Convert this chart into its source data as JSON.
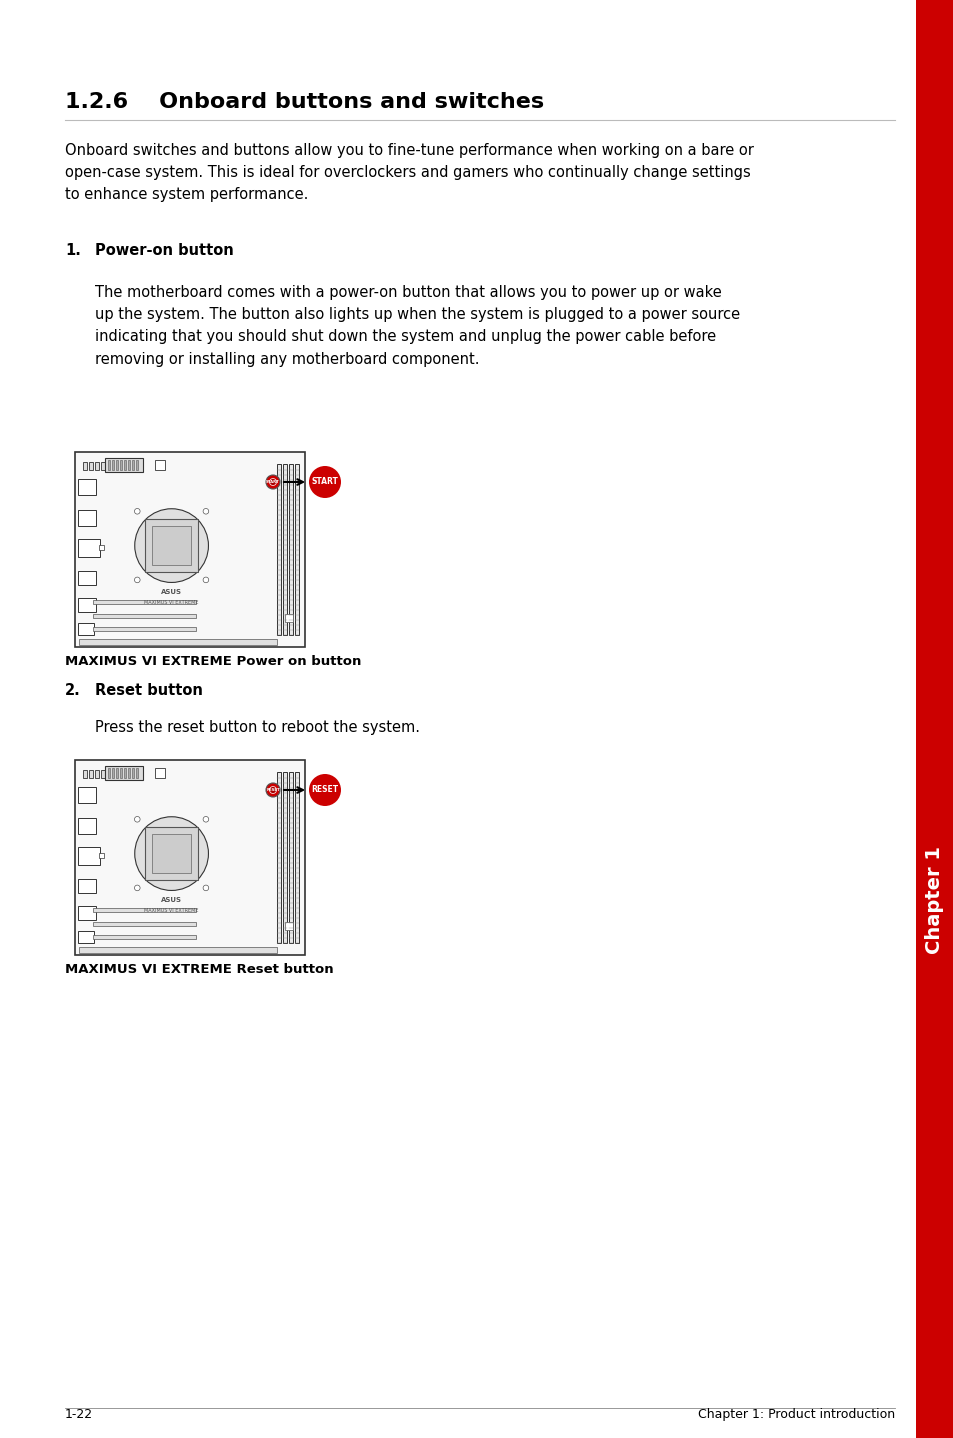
{
  "title": "1.2.6    Onboard buttons and switches",
  "title_fontsize": 16,
  "body_fontsize": 10.5,
  "intro_text": "Onboard switches and buttons allow you to fine-tune performance when working on a bare or\nopen-case system. This is ideal for overclockers and gamers who continually change settings\nto enhance system performance.",
  "section1_label": "1.",
  "section1_title": "Power-on button",
  "section1_body": "The motherboard comes with a power-on button that allows you to power up or wake\nup the system. The button also lights up when the system is plugged to a power source\nindicating that you should shut down the system and unplug the power cable before\nremoving or installing any motherboard component.",
  "section1_caption": "MAXIMUS VI EXTREME Power on button",
  "section2_label": "2.",
  "section2_title": "Reset button",
  "section2_body": "Press the reset button to reboot the system.",
  "section2_caption": "MAXIMUS VI EXTREME Reset button",
  "footer_left": "1-22",
  "footer_right": "Chapter 1: Product introduction",
  "sidebar_text": "Chapter 1",
  "bg_color": "#ffffff",
  "text_color": "#000000",
  "sidebar_bg": "#cc0000",
  "sidebar_text_color": "#ffffff",
  "title_color": "#000000",
  "caption_color": "#000000"
}
